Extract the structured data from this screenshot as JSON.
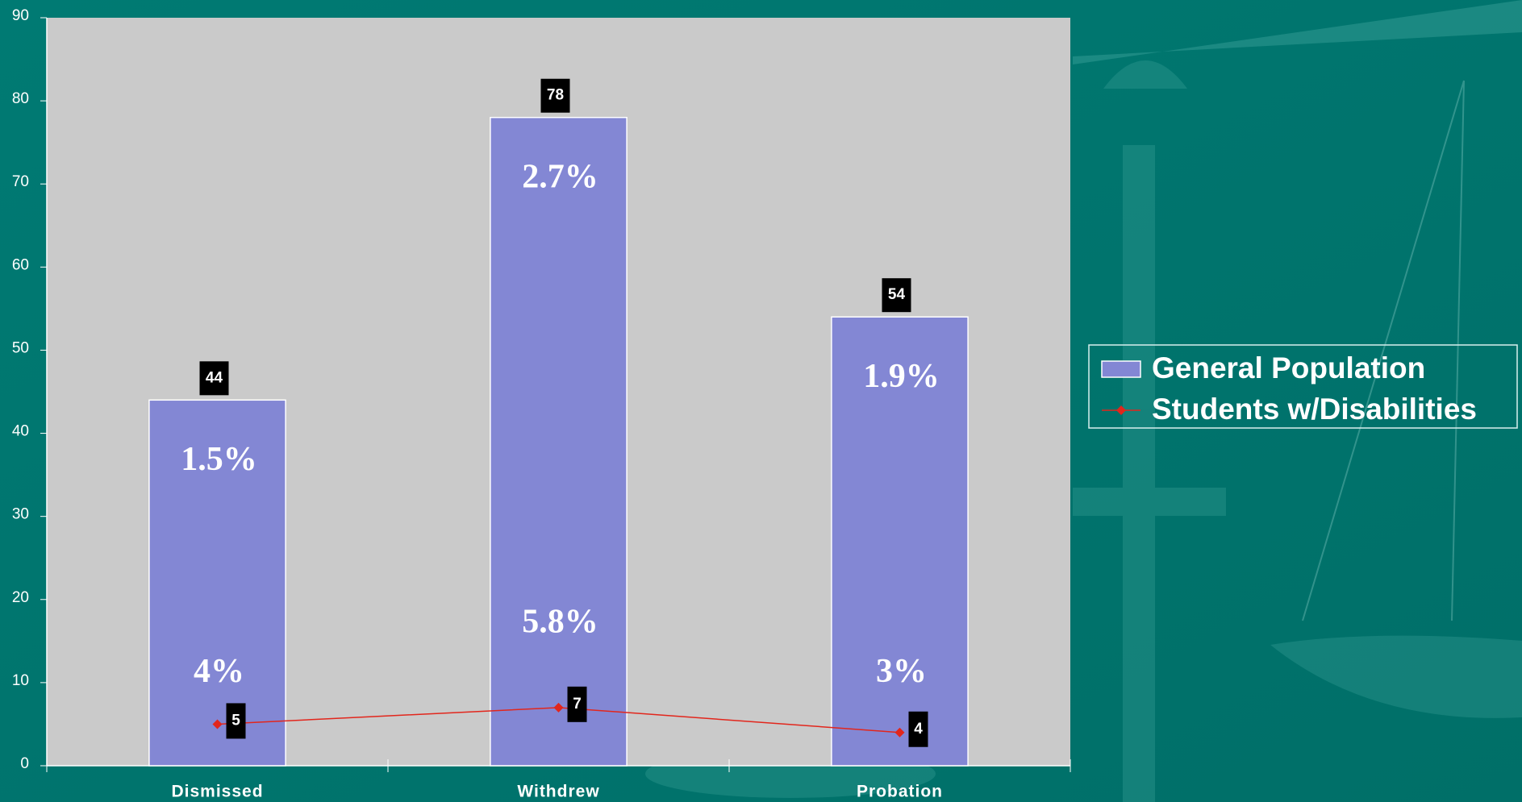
{
  "chart_data": {
    "type": "bar",
    "categories": [
      "Dismissed",
      "Withdrew",
      "Probation"
    ],
    "series": [
      {
        "name": "General Population",
        "type": "bar",
        "color": "#8387d4",
        "values": [
          44,
          78,
          54
        ]
      },
      {
        "name": "Students w/Disabilities",
        "type": "line",
        "color": "#e2261c",
        "values": [
          5,
          7,
          4
        ]
      }
    ],
    "bar_annotations": [
      [
        "1.5%",
        "4%"
      ],
      [
        "2.7%",
        "5.8%"
      ],
      [
        "1.9%",
        "3%"
      ]
    ],
    "ylim": [
      0,
      90
    ],
    "yticks": [
      0,
      10,
      20,
      30,
      40,
      50,
      60,
      70,
      80,
      90
    ],
    "grid": false,
    "legend": "right",
    "plot_background": "#cacaca"
  }
}
